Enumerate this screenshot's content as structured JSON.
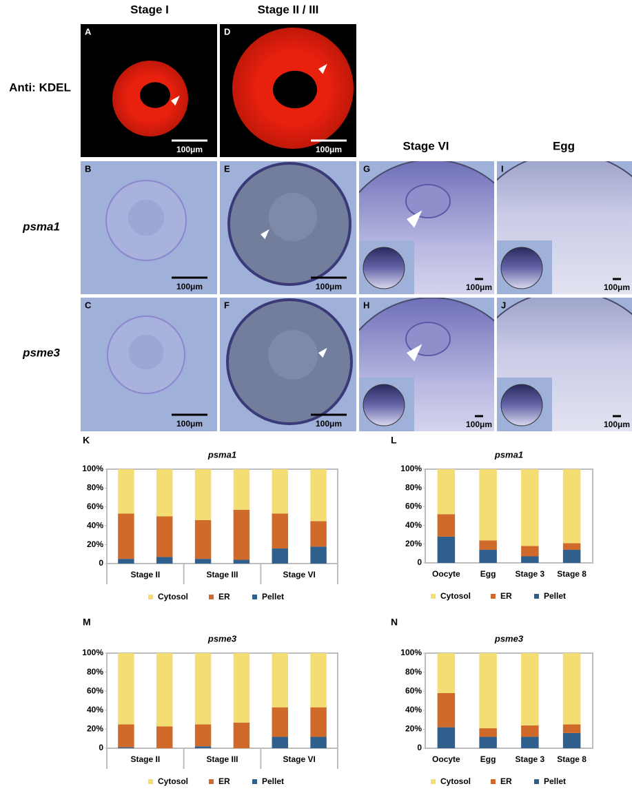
{
  "figure": {
    "column_headers": [
      "Stage I",
      "Stage II / III",
      "Stage VI",
      "Egg"
    ],
    "row_labels": [
      "Anti: KDEL",
      "psma1",
      "psme3"
    ],
    "panels": [
      {
        "letter": "A",
        "scale": "100μm"
      },
      {
        "letter": "D",
        "scale": "100μm"
      },
      {
        "letter": "B",
        "scale": "100μm"
      },
      {
        "letter": "E",
        "scale": "100μm"
      },
      {
        "letter": "G",
        "scale": "100μm"
      },
      {
        "letter": "I",
        "scale": "100μm"
      },
      {
        "letter": "C",
        "scale": "100μm"
      },
      {
        "letter": "F",
        "scale": "100μm"
      },
      {
        "letter": "H",
        "scale": "100μm"
      },
      {
        "letter": "J",
        "scale": "100μm"
      }
    ]
  },
  "chart_data": [
    {
      "type": "bar",
      "stacked": true,
      "letter": "K",
      "title": "psma1",
      "groups": [
        "Stage II",
        "Stage III",
        "Stage VI"
      ],
      "ylim": [
        0,
        100
      ],
      "yticks": [
        0,
        {
          "value": 20,
          "label": "20%"
        },
        {
          "value": 40,
          "label": "40%"
        },
        {
          "value": 60,
          "label": "60%"
        },
        {
          "value": 80,
          "label": "80%"
        },
        {
          "value": 100,
          "label": "100%"
        }
      ],
      "series": [
        {
          "name": "Pellet",
          "color": "#2f5f8c",
          "values": [
            5,
            7,
            5,
            4,
            16,
            18
          ]
        },
        {
          "name": "ER",
          "color": "#cf6a2a",
          "values": [
            48,
            43,
            41,
            53,
            37,
            27
          ]
        },
        {
          "name": "Cytosol",
          "color": "#f4de74",
          "values": [
            47,
            50,
            54,
            43,
            47,
            55
          ]
        }
      ]
    },
    {
      "type": "bar",
      "stacked": true,
      "letter": "L",
      "title": "psma1",
      "categories": [
        "Oocyte",
        "Egg",
        "Stage 3",
        "Stage 8"
      ],
      "ylim": [
        0,
        100
      ],
      "yticks": [
        0,
        {
          "value": 20,
          "label": "20%"
        },
        {
          "value": 40,
          "label": "40%"
        },
        {
          "value": 60,
          "label": "60%"
        },
        {
          "value": 80,
          "label": "80%"
        },
        {
          "value": 100,
          "label": "100%"
        }
      ],
      "series": [
        {
          "name": "Pellet",
          "color": "#2f5f8c",
          "values": [
            28,
            14,
            7,
            14
          ]
        },
        {
          "name": "ER",
          "color": "#cf6a2a",
          "values": [
            24,
            10,
            11,
            7
          ]
        },
        {
          "name": "Cytosol",
          "color": "#f4de74",
          "values": [
            48,
            76,
            82,
            79
          ]
        }
      ]
    },
    {
      "type": "bar",
      "stacked": true,
      "letter": "M",
      "title": "psme3",
      "groups": [
        "Stage II",
        "Stage III",
        "Stage VI"
      ],
      "ylim": [
        0,
        100
      ],
      "yticks": [
        0,
        {
          "value": 20,
          "label": "20%"
        },
        {
          "value": 40,
          "label": "40%"
        },
        {
          "value": 60,
          "label": "60%"
        },
        {
          "value": 80,
          "label": "80%"
        },
        {
          "value": 100,
          "label": "100%"
        }
      ],
      "series": [
        {
          "name": "Pellet",
          "color": "#2f5f8c",
          "values": [
            1,
            0,
            2,
            0,
            12,
            12
          ]
        },
        {
          "name": "ER",
          "color": "#cf6a2a",
          "values": [
            24,
            23,
            23,
            27,
            31,
            31
          ]
        },
        {
          "name": "Cytosol",
          "color": "#f4de74",
          "values": [
            75,
            77,
            75,
            73,
            57,
            57
          ]
        }
      ]
    },
    {
      "type": "bar",
      "stacked": true,
      "letter": "N",
      "title": "psme3",
      "categories": [
        "Oocyte",
        "Egg",
        "Stage 3",
        "Stage 8"
      ],
      "ylim": [
        0,
        100
      ],
      "yticks": [
        0,
        {
          "value": 20,
          "label": "20%"
        },
        {
          "value": 40,
          "label": "40%"
        },
        {
          "value": 60,
          "label": "60%"
        },
        {
          "value": 80,
          "label": "80%"
        },
        {
          "value": 100,
          "label": "100%"
        }
      ],
      "series": [
        {
          "name": "Pellet",
          "color": "#2f5f8c",
          "values": [
            22,
            12,
            12,
            16
          ]
        },
        {
          "name": "ER",
          "color": "#cf6a2a",
          "values": [
            36,
            9,
            12,
            9
          ]
        },
        {
          "name": "Cytosol",
          "color": "#f4de74",
          "values": [
            42,
            79,
            76,
            75
          ]
        }
      ]
    }
  ]
}
